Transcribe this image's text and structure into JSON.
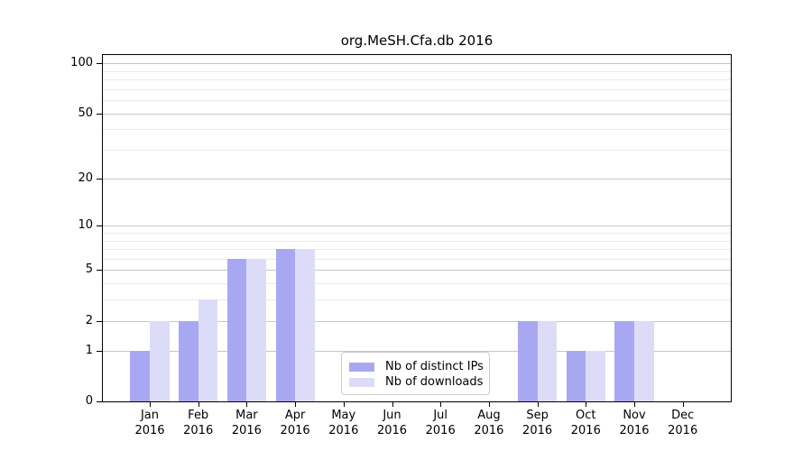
{
  "chart_data": {
    "type": "bar",
    "title": "org.MeSH.Cfa.db 2016",
    "categories": [
      {
        "month": "Jan",
        "year": "2016"
      },
      {
        "month": "Feb",
        "year": "2016"
      },
      {
        "month": "Mar",
        "year": "2016"
      },
      {
        "month": "Apr",
        "year": "2016"
      },
      {
        "month": "May",
        "year": "2016"
      },
      {
        "month": "Jun",
        "year": "2016"
      },
      {
        "month": "Jul",
        "year": "2016"
      },
      {
        "month": "Aug",
        "year": "2016"
      },
      {
        "month": "Sep",
        "year": "2016"
      },
      {
        "month": "Oct",
        "year": "2016"
      },
      {
        "month": "Nov",
        "year": "2016"
      },
      {
        "month": "Dec",
        "year": "2016"
      }
    ],
    "series": [
      {
        "name": "Nb of distinct IPs",
        "color": "#a8a8f2",
        "values": [
          1,
          2,
          6,
          7,
          0,
          0,
          0,
          0,
          2,
          1,
          2,
          0
        ]
      },
      {
        "name": "Nb of downloads",
        "color": "#dcdcf8",
        "values": [
          2,
          3,
          6,
          7,
          0,
          0,
          0,
          0,
          2,
          1,
          2,
          0
        ]
      }
    ],
    "xlabel": "",
    "ylabel": "",
    "yscale": "log1p",
    "ylim": [
      0,
      112
    ],
    "yticks": [
      {
        "value": 0,
        "label": "0"
      },
      {
        "value": 1,
        "label": "1"
      },
      {
        "value": 2,
        "label": "2"
      },
      {
        "value": 5,
        "label": "5"
      },
      {
        "value": 10,
        "label": "10"
      },
      {
        "value": 20,
        "label": "20"
      },
      {
        "value": 50,
        "label": "50"
      },
      {
        "value": 100,
        "label": "100"
      }
    ],
    "minor_yticks": [
      3,
      4,
      6,
      7,
      8,
      9,
      30,
      40,
      60,
      70,
      80,
      90
    ],
    "grid": "horizontal",
    "legend_position": "inside-bottom-center",
    "colors": {
      "major_grid": "#c6c6c6",
      "minor_grid": "#eaeaea",
      "axis": "#000000",
      "background": "#ffffff"
    }
  }
}
